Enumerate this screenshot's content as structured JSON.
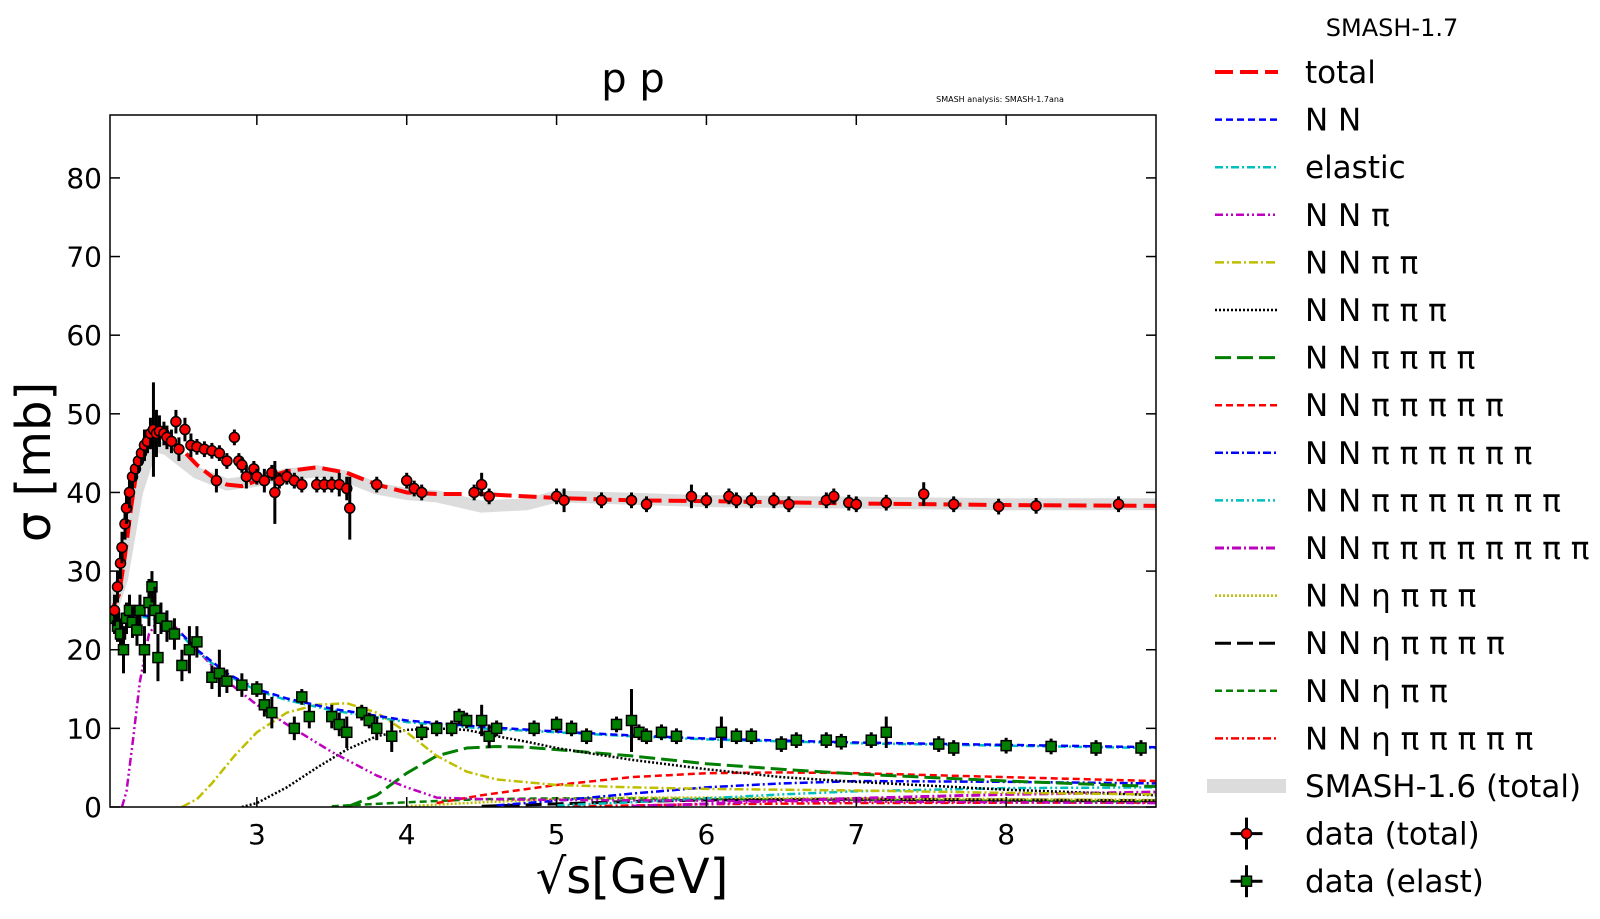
{
  "chart_data": {
    "type": "line",
    "title": "p p",
    "watermark": "SMASH analysis: SMASH-1.7ana",
    "xlabel": "√s[GeV]",
    "ylabel": "σ [mb]",
    "xlim": [
      2.02,
      9.0
    ],
    "ylim": [
      0,
      88
    ],
    "xticks": [
      3,
      4,
      5,
      6,
      7,
      8
    ],
    "yticks": [
      0,
      10,
      20,
      30,
      40,
      50,
      60,
      70,
      80
    ],
    "legend_title": "SMASH-1.7",
    "legend_position": "outside-right",
    "series": [
      {
        "name": "total",
        "color": "#ff0000",
        "dash": "18,7",
        "width": 4,
        "x": [
          2.03,
          2.08,
          2.12,
          2.16,
          2.2,
          2.25,
          2.3,
          2.35,
          2.4,
          2.5,
          2.6,
          2.7,
          2.8,
          2.9,
          3.0,
          3.2,
          3.4,
          3.6,
          3.8,
          4.0,
          4.2,
          4.5,
          5.0,
          5.5,
          6.0,
          7.0,
          8.0,
          9.0
        ],
        "y": [
          25,
          27,
          32,
          38,
          43,
          46.5,
          47.5,
          47.5,
          47,
          45.5,
          43.5,
          42,
          41,
          40.8,
          41.5,
          42.7,
          43.2,
          42.5,
          41,
          40,
          39.8,
          39.8,
          39.3,
          39,
          38.9,
          38.6,
          38.4,
          38.3
        ]
      },
      {
        "name": "N N",
        "color": "#0000ff",
        "dash": "7,4",
        "width": 2.5,
        "x": [
          2.03,
          2.1,
          2.2,
          2.3,
          2.4,
          2.5,
          2.6,
          2.8,
          3.0,
          3.2,
          3.5,
          4.0,
          4.5,
          5.0,
          5.5,
          6.0,
          7.0,
          8.0,
          9.0
        ],
        "y": [
          23.5,
          24,
          24.5,
          24.2,
          23.5,
          22,
          20,
          17,
          15,
          13.8,
          12.5,
          11,
          10.2,
          9.6,
          9.1,
          8.7,
          8.2,
          7.9,
          7.6
        ]
      },
      {
        "name": "elastic",
        "color": "#00bfbf",
        "dash": "8,3,2,3",
        "width": 2.5,
        "x": [
          2.03,
          2.1,
          2.2,
          2.3,
          2.4,
          2.5,
          2.6,
          2.8,
          3.0,
          3.2,
          3.5,
          4.0,
          4.5,
          5.0,
          5.5,
          6.0,
          7.0,
          8.0,
          9.0
        ],
        "y": [
          23.3,
          23.8,
          24.3,
          24,
          23.3,
          21.8,
          19.8,
          16.8,
          14.8,
          13.6,
          12.3,
          10.8,
          10.0,
          9.5,
          9.0,
          8.6,
          8.1,
          7.8,
          7.5
        ]
      },
      {
        "name": "N N π",
        "color": "#bf00bf",
        "dash": "8,3,2,3,2,3",
        "width": 2.5,
        "x": [
          2.1,
          2.13,
          2.17,
          2.22,
          2.28,
          2.35,
          2.45,
          2.6,
          2.8,
          3.0,
          3.2,
          3.5,
          3.8,
          4.0,
          4.2,
          4.5,
          5.0,
          6.0,
          7.0,
          8.0,
          9.0
        ],
        "y": [
          0,
          2,
          8,
          16,
          22,
          24,
          23,
          20,
          16,
          13,
          10.5,
          7,
          4,
          2.5,
          1.2,
          1.0,
          0.9,
          0.8,
          0.7,
          0.6,
          0.5
        ]
      },
      {
        "name": "N N π π",
        "color": "#bfbf00",
        "dash": "9,3,2,3",
        "width": 2.5,
        "x": [
          2.5,
          2.6,
          2.7,
          2.85,
          3.0,
          3.2,
          3.4,
          3.6,
          3.8,
          4.0,
          4.2,
          4.4,
          4.6,
          5.0,
          5.5,
          6.0,
          7.0,
          8.0,
          9.0
        ],
        "y": [
          0,
          1,
          3,
          6.5,
          9.5,
          12,
          13,
          13.2,
          12,
          9.5,
          6.5,
          4.5,
          3.5,
          2.8,
          2.5,
          2.3,
          2.1,
          1.8,
          1.6
        ]
      },
      {
        "name": "N N π π π",
        "color": "#000000",
        "dash": "2,2",
        "width": 2.5,
        "x": [
          2.9,
          3.0,
          3.2,
          3.4,
          3.6,
          3.8,
          4.0,
          4.2,
          4.4,
          4.6,
          4.8,
          5.0,
          5.5,
          6.0,
          6.5,
          7.0,
          8.0,
          9.0
        ],
        "y": [
          0,
          0.5,
          2.5,
          5,
          7.3,
          9,
          9.8,
          10,
          9.8,
          9,
          8.3,
          7.5,
          6,
          4.8,
          3.8,
          3.2,
          2.2,
          1.5
        ]
      },
      {
        "name": "N N π π π π",
        "color": "#007f00",
        "dash": "16,6",
        "width": 3,
        "x": [
          3.6,
          3.8,
          4.0,
          4.2,
          4.4,
          4.6,
          4.8,
          5.0,
          5.5,
          6.0,
          6.5,
          7.0,
          8.0,
          9.0
        ],
        "y": [
          0,
          1.5,
          4.3,
          6.5,
          7.5,
          7.7,
          7.6,
          7.3,
          6.5,
          5.5,
          4.8,
          4.2,
          3.3,
          2.6
        ]
      },
      {
        "name": "N N π π π π π",
        "color": "#ff0000",
        "dash": "7,4",
        "width": 2.5,
        "x": [
          4.2,
          4.5,
          5.0,
          5.5,
          6.0,
          6.5,
          7.0,
          8.0,
          9.0
        ],
        "y": [
          0.5,
          1.5,
          2.8,
          3.8,
          4.3,
          4.4,
          4.3,
          3.8,
          3.3
        ]
      },
      {
        "name": "N N π π π π π π",
        "color": "#0000ff",
        "dash": "8,3,2,3",
        "width": 2.5,
        "x": [
          4.6,
          5.0,
          5.5,
          6.0,
          6.5,
          7.0,
          8.0,
          9.0
        ],
        "y": [
          0.2,
          0.8,
          1.7,
          2.5,
          3.0,
          3.3,
          3.2,
          3.0
        ]
      },
      {
        "name": "N N π π π π π π π",
        "color": "#00bfbf",
        "dash": "8,3,2,3,2,3",
        "width": 2.5,
        "x": [
          5.0,
          5.5,
          6.0,
          6.5,
          7.0,
          8.0,
          9.0
        ],
        "y": [
          0.2,
          0.6,
          1.1,
          1.6,
          2.0,
          2.4,
          2.5
        ]
      },
      {
        "name": "N N π π π π π π π π",
        "color": "#bf00bf",
        "dash": "9,3,2,3",
        "width": 3,
        "x": [
          5.5,
          6.0,
          6.5,
          7.0,
          8.0,
          9.0
        ],
        "y": [
          0.1,
          0.4,
          0.8,
          1.1,
          1.6,
          1.9
        ]
      },
      {
        "name": "N N η π π π",
        "color": "#bfbf00",
        "dash": "2,2",
        "width": 2.5,
        "x": [
          4.0,
          4.5,
          5.0,
          5.5,
          6.0,
          7.0,
          8.0,
          9.0
        ],
        "y": [
          0.1,
          0.6,
          1.0,
          1.2,
          1.2,
          1.1,
          1.0,
          0.9
        ]
      },
      {
        "name": "N N η π π π π",
        "color": "#000000",
        "dash": "16,6",
        "width": 3,
        "x": [
          4.5,
          5.0,
          5.5,
          6.0,
          7.0,
          8.0,
          9.0
        ],
        "y": [
          0.1,
          0.4,
          0.7,
          0.9,
          1.0,
          0.9,
          0.8
        ]
      },
      {
        "name": "N N η π π",
        "color": "#007f00",
        "dash": "7,4",
        "width": 2.5,
        "x": [
          3.5,
          4.0,
          4.5,
          5.0,
          5.5,
          6.0,
          7.0,
          8.0,
          9.0
        ],
        "y": [
          0.1,
          0.6,
          1.0,
          1.1,
          1.1,
          1.0,
          0.9,
          0.8,
          0.7
        ]
      },
      {
        "name": "N N η π π π π π",
        "color": "#ff0000",
        "dash": "8,3,2,3",
        "width": 2.5,
        "x": [
          5.0,
          5.5,
          6.0,
          7.0,
          8.0,
          9.0
        ],
        "y": [
          0.05,
          0.2,
          0.35,
          0.5,
          0.55,
          0.55
        ]
      }
    ],
    "band": {
      "name": "SMASH-1.6 (total)",
      "color": "#dcdcdc",
      "x": [
        2.03,
        2.1,
        2.2,
        2.3,
        2.4,
        2.5,
        2.6,
        2.8,
        3.0,
        3.2,
        3.4,
        3.6,
        3.8,
        4.0,
        4.2,
        4.5,
        4.8,
        5.0,
        5.5,
        6.0,
        7.0,
        8.0,
        9.0
      ],
      "y": [
        25,
        29,
        40,
        46,
        45.5,
        44,
        42.5,
        41,
        41.5,
        42.3,
        42.7,
        42,
        40.5,
        39.8,
        39.5,
        38.2,
        38.5,
        39.5,
        39.2,
        38.9,
        38.7,
        38.5,
        38.5
      ]
    },
    "data_total": {
      "name": "data (total)",
      "color": "#ff0000",
      "points": [
        [
          2.05,
          25,
          2
        ],
        [
          2.07,
          28,
          2
        ],
        [
          2.09,
          31,
          2
        ],
        [
          2.1,
          33,
          2
        ],
        [
          2.12,
          36,
          2
        ],
        [
          2.13,
          38,
          2
        ],
        [
          2.15,
          40,
          2
        ],
        [
          2.17,
          42,
          1.5
        ],
        [
          2.19,
          43,
          1.5
        ],
        [
          2.21,
          44,
          1.5
        ],
        [
          2.23,
          45,
          1.5
        ],
        [
          2.25,
          46,
          2
        ],
        [
          2.27,
          46.5,
          1.5
        ],
        [
          2.29,
          47.5,
          2
        ],
        [
          2.31,
          48,
          6
        ],
        [
          2.33,
          47.5,
          3
        ],
        [
          2.35,
          47.8,
          2
        ],
        [
          2.38,
          47.5,
          1.5
        ],
        [
          2.4,
          47,
          1.5
        ],
        [
          2.43,
          46.5,
          1.5
        ],
        [
          2.46,
          49,
          1.5
        ],
        [
          2.48,
          45.5,
          1.5
        ],
        [
          2.52,
          48,
          1.5
        ],
        [
          2.56,
          46,
          1.5
        ],
        [
          2.6,
          45.8,
          1
        ],
        [
          2.65,
          45.5,
          1
        ],
        [
          2.7,
          45.3,
          1
        ],
        [
          2.73,
          41.5,
          1.5
        ],
        [
          2.75,
          45,
          1
        ],
        [
          2.8,
          44,
          1
        ],
        [
          2.85,
          47,
          1
        ],
        [
          2.88,
          44,
          1
        ],
        [
          2.9,
          43.5,
          1
        ],
        [
          2.93,
          42,
          1.5
        ],
        [
          2.98,
          43,
          1
        ],
        [
          3.0,
          42,
          1
        ],
        [
          3.05,
          41.5,
          1.5
        ],
        [
          3.1,
          42.5,
          1
        ],
        [
          3.12,
          40,
          4
        ],
        [
          3.15,
          41.5,
          1
        ],
        [
          3.2,
          42,
          1
        ],
        [
          3.25,
          41.5,
          1
        ],
        [
          3.3,
          41,
          1
        ],
        [
          3.4,
          41,
          1
        ],
        [
          3.45,
          41,
          1
        ],
        [
          3.5,
          41,
          1
        ],
        [
          3.55,
          41,
          1.5
        ],
        [
          3.6,
          40.5,
          1.5
        ],
        [
          3.62,
          38,
          4
        ],
        [
          3.8,
          41,
          1
        ],
        [
          4.0,
          41.5,
          1
        ],
        [
          4.05,
          40.5,
          1
        ],
        [
          4.1,
          40,
          1
        ],
        [
          4.45,
          40,
          1
        ],
        [
          4.5,
          41,
          1.5
        ],
        [
          4.55,
          39.5,
          1
        ],
        [
          5.0,
          39.5,
          1
        ],
        [
          5.05,
          39,
          1.5
        ],
        [
          5.3,
          39,
          1
        ],
        [
          5.5,
          39,
          1
        ],
        [
          5.6,
          38.5,
          1
        ],
        [
          5.9,
          39.5,
          1.5
        ],
        [
          6.0,
          39,
          1
        ],
        [
          6.15,
          39.5,
          1
        ],
        [
          6.2,
          39,
          1
        ],
        [
          6.3,
          39,
          1
        ],
        [
          6.45,
          39,
          1
        ],
        [
          6.55,
          38.5,
          1
        ],
        [
          6.8,
          39,
          1
        ],
        [
          6.85,
          39.5,
          1
        ],
        [
          6.95,
          38.7,
          1
        ],
        [
          7.0,
          38.5,
          1
        ],
        [
          7.2,
          38.7,
          1
        ],
        [
          7.45,
          39.8,
          1.5
        ],
        [
          7.65,
          38.5,
          1
        ],
        [
          7.95,
          38.2,
          1
        ],
        [
          8.2,
          38.3,
          1
        ],
        [
          8.75,
          38.5,
          1
        ]
      ]
    },
    "data_elast": {
      "name": "data (elast)",
      "color": "#007f00",
      "points": [
        [
          2.05,
          24,
          2
        ],
        [
          2.07,
          23,
          2
        ],
        [
          2.09,
          22,
          2
        ],
        [
          2.11,
          20,
          3
        ],
        [
          2.13,
          24,
          2
        ],
        [
          2.15,
          25,
          2
        ],
        [
          2.17,
          23.5,
          2
        ],
        [
          2.2,
          22.5,
          2
        ],
        [
          2.22,
          25,
          2
        ],
        [
          2.25,
          20,
          3
        ],
        [
          2.28,
          26,
          3
        ],
        [
          2.3,
          28,
          2
        ],
        [
          2.32,
          25,
          3
        ],
        [
          2.34,
          19,
          3
        ],
        [
          2.36,
          24,
          2
        ],
        [
          2.4,
          23,
          2
        ],
        [
          2.45,
          22,
          2
        ],
        [
          2.5,
          18,
          2
        ],
        [
          2.55,
          20,
          3
        ],
        [
          2.6,
          21,
          2
        ],
        [
          2.7,
          16.5,
          1.5
        ],
        [
          2.75,
          17,
          3
        ],
        [
          2.8,
          16,
          1.5
        ],
        [
          2.9,
          15.5,
          1.5
        ],
        [
          3.0,
          15,
          1
        ],
        [
          3.05,
          13,
          1.5
        ],
        [
          3.1,
          12,
          2
        ],
        [
          3.25,
          10,
          1.5
        ],
        [
          3.3,
          14,
          1
        ],
        [
          3.35,
          11.5,
          1.5
        ],
        [
          3.5,
          11.5,
          1.5
        ],
        [
          3.55,
          10.5,
          1.5
        ],
        [
          3.6,
          9.5,
          2
        ],
        [
          3.7,
          12,
          1
        ],
        [
          3.75,
          11,
          1
        ],
        [
          3.8,
          10,
          1.5
        ],
        [
          3.9,
          9,
          2
        ],
        [
          4.1,
          9.5,
          1
        ],
        [
          4.2,
          10,
          1
        ],
        [
          4.3,
          10,
          1
        ],
        [
          4.35,
          11.5,
          1
        ],
        [
          4.4,
          11,
          1
        ],
        [
          4.5,
          11,
          2
        ],
        [
          4.55,
          9,
          1.5
        ],
        [
          4.6,
          10,
          1
        ],
        [
          4.85,
          10,
          1
        ],
        [
          5.0,
          10.5,
          1
        ],
        [
          5.1,
          10,
          1
        ],
        [
          5.2,
          9,
          1
        ],
        [
          5.4,
          10.5,
          1
        ],
        [
          5.5,
          11,
          4
        ],
        [
          5.55,
          9.5,
          1
        ],
        [
          5.6,
          9,
          1
        ],
        [
          5.7,
          9.5,
          1
        ],
        [
          5.8,
          9,
          1
        ],
        [
          6.1,
          9.5,
          2
        ],
        [
          6.2,
          9,
          1
        ],
        [
          6.3,
          9,
          1
        ],
        [
          6.5,
          8,
          1
        ],
        [
          6.6,
          8.5,
          1
        ],
        [
          6.8,
          8.5,
          1
        ],
        [
          6.9,
          8.3,
          1
        ],
        [
          7.1,
          8.5,
          1
        ],
        [
          7.2,
          9.5,
          2
        ],
        [
          7.55,
          8,
          1
        ],
        [
          7.65,
          7.5,
          1
        ],
        [
          8.0,
          7.8,
          1
        ],
        [
          8.3,
          7.7,
          1
        ],
        [
          8.6,
          7.5,
          1
        ],
        [
          8.9,
          7.5,
          1
        ]
      ]
    }
  }
}
